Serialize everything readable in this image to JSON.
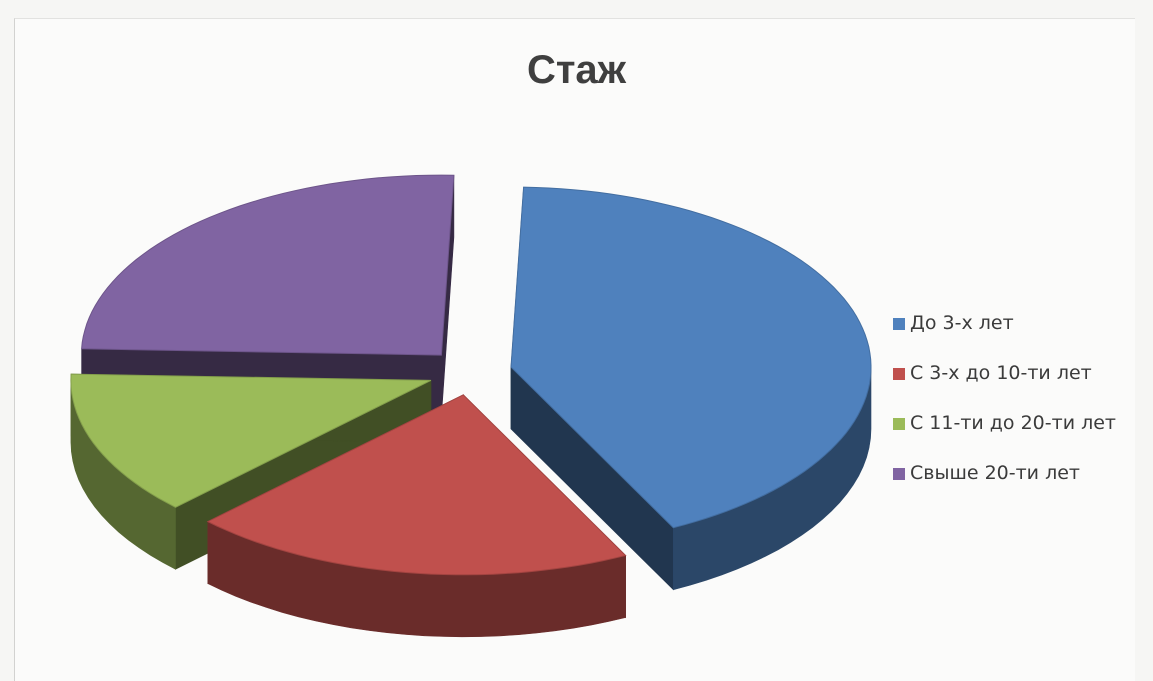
{
  "chart_data": {
    "type": "pie",
    "title": "Стаж",
    "categories": [
      "До 3-х лет",
      "С 3-х до 10-ти лет",
      "С 11-ти до 20-ти лет",
      "Свыше 20-ти лет"
    ],
    "values": [
      42,
      20,
      13,
      25
    ],
    "colors": [
      "#4f81bd",
      "#c0504d",
      "#9bbb59",
      "#8064a2"
    ],
    "three_d": true,
    "exploded": true,
    "legend": "right"
  }
}
